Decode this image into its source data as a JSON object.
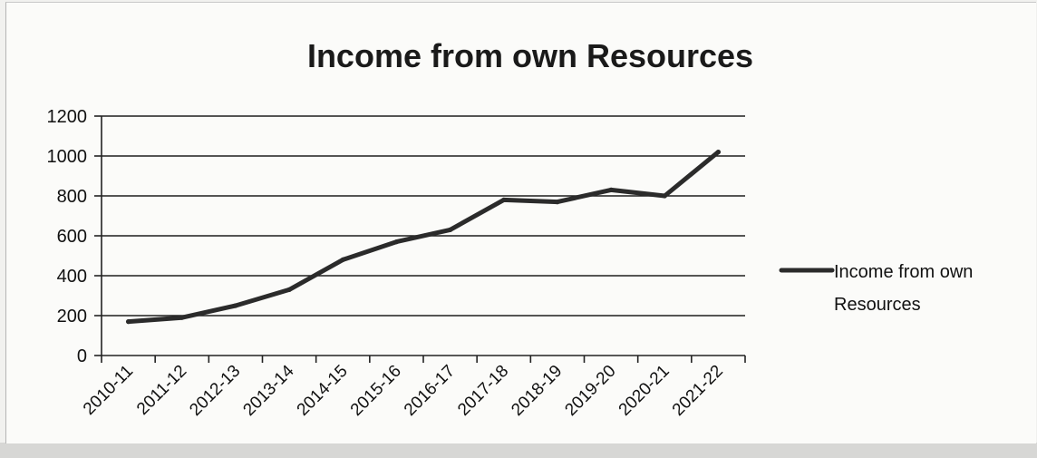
{
  "chart_data": {
    "type": "line",
    "title": "Income from own Resources",
    "categories": [
      "2010-11",
      "2011-12",
      "2012-13",
      "2013-14",
      "2014-15",
      "2015-16",
      "2016-17",
      "2017-18",
      "2018-19",
      "2019-20",
      "2020-21",
      "2021-22"
    ],
    "series": [
      {
        "name": "Income from own Resources",
        "values": [
          170,
          190,
          250,
          330,
          480,
          570,
          630,
          780,
          770,
          830,
          800,
          1020
        ]
      }
    ],
    "ylim": [
      0,
      1200
    ],
    "yticks": [
      0,
      200,
      400,
      600,
      800,
      1000,
      1200
    ],
    "xlabel": "",
    "ylabel": "",
    "grid": true,
    "legend": "right",
    "colors": {
      "series": "#2b2b2b",
      "grid": "#1e1e1e",
      "background": "#fbfbf9"
    }
  },
  "legend": {
    "line1": "Income from own",
    "line2": "Resources"
  }
}
